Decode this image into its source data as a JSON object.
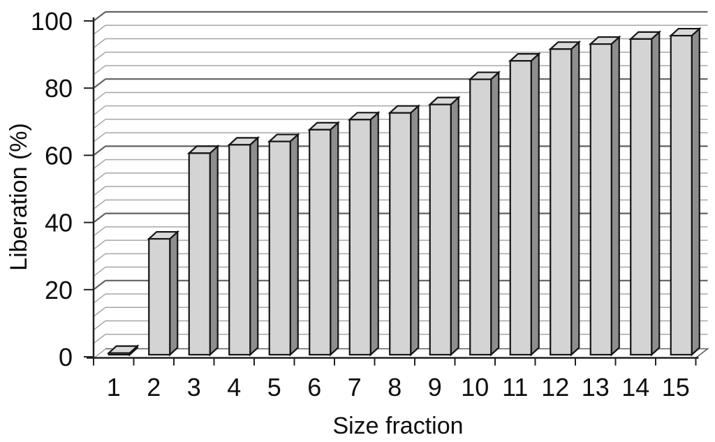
{
  "chart_data": {
    "type": "bar",
    "variant": "3d-column",
    "title": "",
    "xlabel": "Size fraction",
    "ylabel": "Liberation (%)",
    "categories": [
      "1",
      "2",
      "3",
      "4",
      "5",
      "6",
      "7",
      "8",
      "9",
      "10",
      "11",
      "12",
      "13",
      "14",
      "15"
    ],
    "values": [
      0.5,
      34.5,
      60,
      62.5,
      63.5,
      67,
      70,
      72,
      74.5,
      82,
      87.5,
      91,
      92.5,
      94,
      95
    ],
    "ylim": [
      0,
      100
    ],
    "yticks": [
      0,
      20,
      40,
      60,
      80,
      100
    ],
    "minor_grid_step": 4,
    "grid": true,
    "legend": false,
    "colors": {
      "background": "#ffffff",
      "bar_front": "#d4d4d4",
      "bar_top": "#d9d9d9",
      "bar_side": "#8e8e8e",
      "bar_outline": "#141414",
      "grid_minor": "#a6a6a6",
      "grid_major": "#616161",
      "axis": "#202020",
      "text": "#0e0e0e"
    }
  }
}
